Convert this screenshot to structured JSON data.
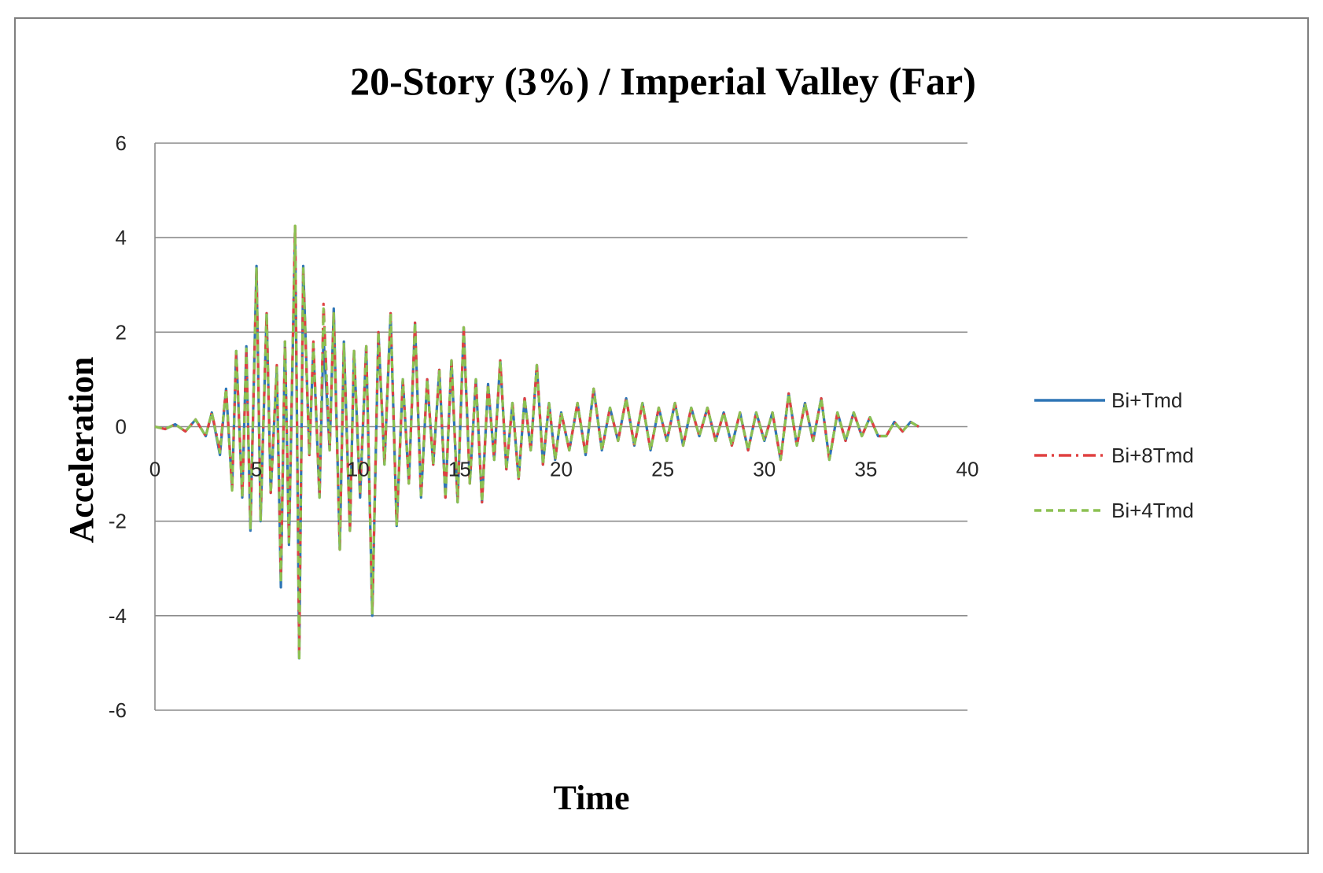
{
  "chart_data": {
    "type": "line",
    "title": "20-Story (3%) / Imperial  Valley (Far)",
    "xlabel": "Time",
    "ylabel": "Acceleration",
    "xlim": [
      0,
      40
    ],
    "ylim": [
      -6,
      6
    ],
    "x_ticks": [
      "0",
      "5",
      "10",
      "15",
      "20",
      "25",
      "30",
      "35",
      "40"
    ],
    "y_ticks": [
      "6",
      "4",
      "2",
      "0",
      "-2",
      "-4",
      "-6"
    ],
    "grid": "horizontal",
    "legend_position": "right",
    "series": [
      {
        "name": "Bi+Tmd",
        "color": "#2e75b6",
        "dash": "solid",
        "x": [
          0,
          0.5,
          1,
          1.5,
          2,
          2.5,
          2.8,
          3.2,
          3.5,
          3.8,
          4.0,
          4.3,
          4.5,
          4.7,
          5.0,
          5.2,
          5.5,
          5.7,
          6.0,
          6.2,
          6.4,
          6.6,
          6.9,
          7.1,
          7.3,
          7.6,
          7.8,
          8.1,
          8.3,
          8.6,
          8.8,
          9.1,
          9.3,
          9.6,
          9.8,
          10.1,
          10.4,
          10.7,
          11.0,
          11.3,
          11.6,
          11.9,
          12.2,
          12.5,
          12.8,
          13.1,
          13.4,
          13.7,
          14.0,
          14.3,
          14.6,
          14.9,
          15.2,
          15.5,
          15.8,
          16.1,
          16.4,
          16.7,
          17.0,
          17.3,
          17.6,
          17.9,
          18.2,
          18.5,
          18.8,
          19.1,
          19.4,
          19.7,
          20.0,
          20.4,
          20.8,
          21.2,
          21.6,
          22.0,
          22.4,
          22.8,
          23.2,
          23.6,
          24.0,
          24.4,
          24.8,
          25.2,
          25.6,
          26.0,
          26.4,
          26.8,
          27.2,
          27.6,
          28.0,
          28.4,
          28.8,
          29.2,
          29.6,
          30.0,
          30.4,
          30.8,
          31.2,
          31.6,
          32.0,
          32.4,
          32.8,
          33.2,
          33.6,
          34.0,
          34.4,
          34.8,
          35.2,
          35.6,
          36.0,
          36.4,
          36.8,
          37.2,
          37.6
        ],
        "values": [
          0,
          -0.05,
          0.05,
          -0.1,
          0.15,
          -0.2,
          0.3,
          -0.6,
          0.8,
          -1.3,
          1.6,
          -1.5,
          1.7,
          -2.2,
          3.4,
          -2.0,
          2.4,
          -1.4,
          1.2,
          -3.4,
          1.8,
          -2.5,
          4.2,
          -4.9,
          3.4,
          -0.6,
          1.7,
          -1.5,
          1.9,
          -0.5,
          2.5,
          -2.6,
          1.8,
          -2.2,
          1.6,
          -1.5,
          1.7,
          -4.0,
          2.0,
          -0.8,
          2.4,
          -2.1,
          1.0,
          -1.2,
          2.2,
          -1.5,
          1.0,
          -0.8,
          1.2,
          -1.5,
          1.4,
          -1.6,
          2.1,
          -1.2,
          1.0,
          -1.6,
          0.9,
          -0.7,
          1.4,
          -0.9,
          0.5,
          -1.1,
          0.6,
          -0.5,
          1.3,
          -0.8,
          0.5,
          -0.7,
          0.3,
          -0.5,
          0.5,
          -0.6,
          0.8,
          -0.5,
          0.4,
          -0.3,
          0.6,
          -0.4,
          0.5,
          -0.5,
          0.4,
          -0.3,
          0.5,
          -0.4,
          0.4,
          -0.2,
          0.4,
          -0.3,
          0.3,
          -0.4,
          0.3,
          -0.5,
          0.3,
          -0.3,
          0.3,
          -0.7,
          0.7,
          -0.4,
          0.5,
          -0.3,
          0.6,
          -0.7,
          0.3,
          -0.3,
          0.3,
          -0.2,
          0.2,
          -0.2,
          -0.2,
          0.1,
          -0.1,
          0.1,
          0
        ]
      },
      {
        "name": "Bi+8Tmd",
        "color": "#e04040",
        "dash": "longdashdot",
        "x": [
          0,
          0.5,
          1,
          1.5,
          2,
          2.5,
          2.8,
          3.2,
          3.5,
          3.8,
          4.0,
          4.3,
          4.5,
          4.7,
          5.0,
          5.2,
          5.5,
          5.7,
          6.0,
          6.2,
          6.4,
          6.6,
          6.9,
          7.1,
          7.3,
          7.6,
          7.8,
          8.1,
          8.3,
          8.6,
          8.8,
          9.1,
          9.3,
          9.6,
          9.8,
          10.1,
          10.4,
          10.7,
          11.0,
          11.3,
          11.6,
          11.9,
          12.2,
          12.5,
          12.8,
          13.1,
          13.4,
          13.7,
          14.0,
          14.3,
          14.6,
          14.9,
          15.2,
          15.5,
          15.8,
          16.1,
          16.4,
          16.7,
          17.0,
          17.3,
          17.6,
          17.9,
          18.2,
          18.5,
          18.8,
          19.1,
          19.4,
          19.7,
          20.0,
          20.4,
          20.8,
          21.2,
          21.6,
          22.0,
          22.4,
          22.8,
          23.2,
          23.6,
          24.0,
          24.4,
          24.8,
          25.2,
          25.6,
          26.0,
          26.4,
          26.8,
          27.2,
          27.6,
          28.0,
          28.4,
          28.8,
          29.2,
          29.6,
          30.0,
          30.4,
          30.8,
          31.2,
          31.6,
          32.0,
          32.4,
          32.8,
          33.2,
          33.6,
          34.0,
          34.4,
          34.8,
          35.2,
          35.6,
          36.0,
          36.4,
          36.8,
          37.2,
          37.6
        ],
        "values": [
          0,
          -0.05,
          0.05,
          -0.1,
          0.15,
          -0.2,
          0.3,
          -0.5,
          0.8,
          -1.3,
          1.6,
          -1.5,
          1.6,
          -2.1,
          3.3,
          -1.9,
          2.4,
          -1.4,
          1.3,
          -3.2,
          1.8,
          -2.4,
          4.3,
          -4.8,
          3.3,
          -0.6,
          1.8,
          -1.5,
          2.6,
          -0.5,
          2.4,
          -2.6,
          1.7,
          -2.2,
          1.6,
          -1.4,
          1.7,
          -3.9,
          2.0,
          -0.8,
          2.4,
          -2.1,
          1.0,
          -1.2,
          2.2,
          -1.5,
          1.0,
          -0.8,
          1.2,
          -1.5,
          1.4,
          -1.6,
          2.1,
          -1.2,
          1.0,
          -1.6,
          0.9,
          -0.7,
          1.4,
          -0.9,
          0.5,
          -1.1,
          0.6,
          -0.5,
          1.3,
          -0.8,
          0.5,
          -0.7,
          0.3,
          -0.5,
          0.5,
          -0.6,
          0.8,
          -0.5,
          0.4,
          -0.3,
          0.6,
          -0.4,
          0.5,
          -0.5,
          0.4,
          -0.3,
          0.5,
          -0.4,
          0.4,
          -0.2,
          0.4,
          -0.3,
          0.3,
          -0.4,
          0.3,
          -0.5,
          0.3,
          -0.3,
          0.3,
          -0.7,
          0.7,
          -0.4,
          0.5,
          -0.3,
          0.6,
          -0.7,
          0.3,
          -0.3,
          0.3,
          -0.2,
          0.2,
          -0.2,
          -0.2,
          0.1,
          -0.1,
          0.1,
          0
        ]
      },
      {
        "name": "Bi+4Tmd",
        "color": "#8cc152",
        "dash": "dashed",
        "x": [
          0,
          0.5,
          1,
          1.5,
          2,
          2.5,
          2.8,
          3.2,
          3.5,
          3.8,
          4.0,
          4.3,
          4.5,
          4.7,
          5.0,
          5.2,
          5.5,
          5.7,
          6.0,
          6.2,
          6.4,
          6.6,
          6.9,
          7.1,
          7.3,
          7.6,
          7.8,
          8.1,
          8.3,
          8.6,
          8.8,
          9.1,
          9.3,
          9.6,
          9.8,
          10.1,
          10.4,
          10.7,
          11.0,
          11.3,
          11.6,
          11.9,
          12.2,
          12.5,
          12.8,
          13.1,
          13.4,
          13.7,
          14.0,
          14.3,
          14.6,
          14.9,
          15.2,
          15.5,
          15.8,
          16.1,
          16.4,
          16.7,
          17.0,
          17.3,
          17.6,
          17.9,
          18.2,
          18.5,
          18.8,
          19.1,
          19.4,
          19.7,
          20.0,
          20.4,
          20.8,
          21.2,
          21.6,
          22.0,
          22.4,
          22.8,
          23.2,
          23.6,
          24.0,
          24.4,
          24.8,
          25.2,
          25.6,
          26.0,
          26.4,
          26.8,
          27.2,
          27.6,
          28.0,
          28.4,
          28.8,
          29.2,
          29.6,
          30.0,
          30.4,
          30.8,
          31.2,
          31.6,
          32.0,
          32.4,
          32.8,
          33.2,
          33.6,
          34.0,
          34.4,
          34.8,
          35.2,
          35.6,
          36.0,
          36.4,
          36.8,
          37.2,
          37.6
        ],
        "values": [
          0,
          -0.05,
          0.05,
          -0.1,
          0.15,
          -0.2,
          0.3,
          -0.55,
          0.8,
          -1.35,
          1.6,
          -1.5,
          1.65,
          -2.15,
          3.35,
          -2.0,
          2.4,
          -1.4,
          1.25,
          -3.3,
          1.8,
          -2.45,
          4.25,
          -4.95,
          3.35,
          -0.6,
          1.75,
          -1.5,
          2.5,
          -0.5,
          2.4,
          -2.6,
          1.75,
          -2.2,
          1.6,
          -1.45,
          1.7,
          -3.95,
          2.0,
          -0.8,
          2.4,
          -2.1,
          1.0,
          -1.2,
          2.2,
          -1.5,
          1.0,
          -0.8,
          1.2,
          -1.5,
          1.4,
          -1.6,
          2.1,
          -1.2,
          1.0,
          -1.6,
          0.9,
          -0.7,
          1.4,
          -0.9,
          0.5,
          -1.1,
          0.6,
          -0.5,
          1.3,
          -0.8,
          0.5,
          -0.7,
          0.3,
          -0.5,
          0.5,
          -0.6,
          0.8,
          -0.5,
          0.4,
          -0.3,
          0.6,
          -0.4,
          0.5,
          -0.5,
          0.4,
          -0.3,
          0.5,
          -0.4,
          0.4,
          -0.2,
          0.4,
          -0.3,
          0.3,
          -0.4,
          0.3,
          -0.5,
          0.3,
          -0.3,
          0.3,
          -0.7,
          0.7,
          -0.4,
          0.5,
          -0.3,
          0.6,
          -0.7,
          0.3,
          -0.3,
          0.3,
          -0.2,
          0.2,
          -0.2,
          -0.2,
          0.1,
          -0.1,
          0.1,
          0
        ]
      }
    ]
  }
}
